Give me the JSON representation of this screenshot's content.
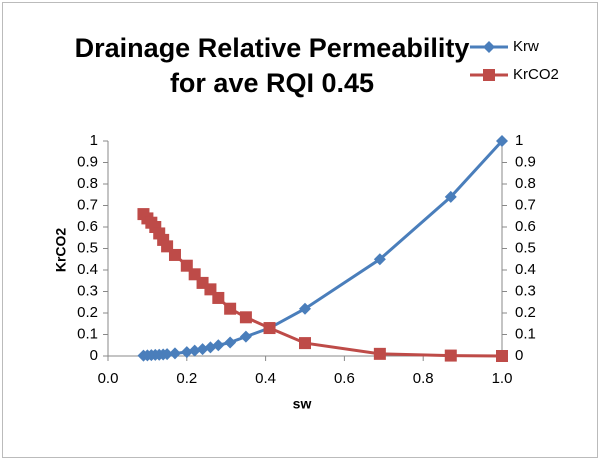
{
  "chart_data": {
    "type": "scatter-line",
    "title": "Drainage Relative Permeability",
    "subtitle": "for ave RQI 0.45",
    "xlabel": "sw",
    "ylabel": "KrCO2",
    "x": [
      0.09,
      0.1,
      0.11,
      0.12,
      0.13,
      0.14,
      0.15,
      0.17,
      0.2,
      0.22,
      0.24,
      0.26,
      0.28,
      0.31,
      0.35,
      0.41,
      0.5,
      0.69,
      0.87,
      1.0
    ],
    "series": [
      {
        "name": "Krw",
        "color": "#4a7ebb",
        "marker": "diamond",
        "axis": "y2",
        "values": [
          0.002,
          0.003,
          0.004,
          0.005,
          0.006,
          0.007,
          0.009,
          0.012,
          0.018,
          0.025,
          0.032,
          0.04,
          0.05,
          0.063,
          0.09,
          0.13,
          0.22,
          0.45,
          0.74,
          1.0
        ]
      },
      {
        "name": "KrCO2",
        "color": "#be4b48",
        "marker": "square",
        "axis": "y",
        "values": [
          0.66,
          0.64,
          0.62,
          0.6,
          0.57,
          0.54,
          0.51,
          0.47,
          0.42,
          0.38,
          0.34,
          0.31,
          0.27,
          0.22,
          0.18,
          0.13,
          0.06,
          0.01,
          0.002,
          0
        ]
      }
    ],
    "xlim": [
      0,
      1
    ],
    "xticks": [
      {
        "value": 0,
        "label": "0.0"
      },
      {
        "value": 0.2,
        "label": "0.2"
      },
      {
        "value": 0.4,
        "label": "0.4"
      },
      {
        "value": 0.6,
        "label": "0.6"
      },
      {
        "value": 0.8,
        "label": "0.8"
      },
      {
        "value": 1,
        "label": "1.0"
      }
    ],
    "ylim": [
      0,
      1
    ],
    "yticks": [
      0,
      0.1,
      0.2,
      0.3,
      0.4,
      0.5,
      0.6,
      0.7,
      0.8,
      0.9,
      1
    ],
    "y2lim": [
      0,
      1
    ],
    "y2ticks": [
      0,
      0.1,
      0.2,
      0.3,
      0.4,
      0.5,
      0.6,
      0.7,
      0.8,
      0.9,
      1
    ],
    "grid": false,
    "legend": "top-right"
  }
}
